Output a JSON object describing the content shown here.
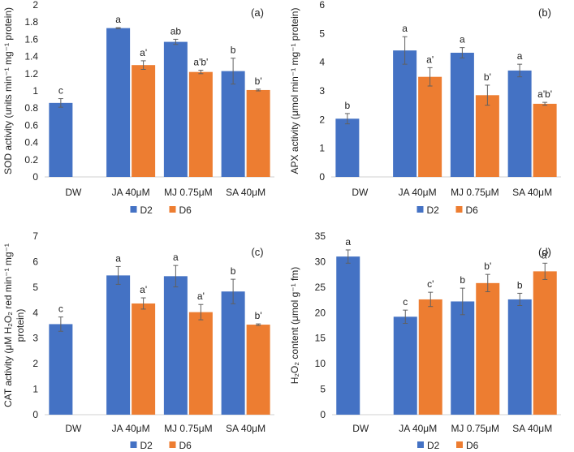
{
  "colors": {
    "D2": "#4472C4",
    "D6": "#ED7D31",
    "axis": "#404040",
    "error": "#606060"
  },
  "chart_data": [
    {
      "type": "bar",
      "panel_label": "(a)",
      "categories": [
        "DW",
        "JA 40μM",
        "MJ 0.75μM",
        "SA 40μM"
      ],
      "ylabel": "SOD activity (units min⁻¹ mg⁻¹ protein)",
      "ylim": [
        0,
        2
      ],
      "yticks": [
        "0",
        "0.2",
        "0.4",
        "0.6",
        "0.8",
        "1",
        "1.2",
        "1.4",
        "1.6",
        "1.8",
        "2"
      ],
      "series": [
        {
          "name": "D2",
          "values": [
            0.86,
            1.73,
            1.57,
            1.23
          ],
          "errors": [
            0.05,
            0.005,
            0.03,
            0.15
          ],
          "letters": [
            "c",
            "a",
            "ab",
            "b"
          ]
        },
        {
          "name": "D6",
          "values": [
            null,
            1.3,
            1.22,
            1.01
          ],
          "errors": [
            null,
            0.05,
            0.02,
            0.01
          ],
          "letters": [
            null,
            "a'",
            "a'b'",
            "b'"
          ]
        }
      ],
      "legend": [
        "D2",
        "D6"
      ]
    },
    {
      "type": "bar",
      "panel_label": "(b)",
      "categories": [
        "DW",
        "JA 40μM",
        "MJ 0.75μM",
        "SA 40μM"
      ],
      "ylabel": "APX activity (μmol min⁻¹ mg⁻¹ protein)",
      "ylim": [
        0,
        6
      ],
      "yticks": [
        "0",
        "1",
        "2",
        "3",
        "4",
        "5",
        "6"
      ],
      "series": [
        {
          "name": "D2",
          "values": [
            2.03,
            4.41,
            4.33,
            3.71
          ],
          "errors": [
            0.18,
            0.48,
            0.18,
            0.22
          ],
          "letters": [
            "b",
            "a",
            "a",
            "a"
          ]
        },
        {
          "name": "D6",
          "values": [
            null,
            3.49,
            2.85,
            2.55
          ],
          "errors": [
            null,
            0.32,
            0.35,
            0.05
          ],
          "letters": [
            null,
            "a'",
            "b'",
            "a'b'"
          ]
        }
      ],
      "legend": [
        "D2",
        "D6"
      ]
    },
    {
      "type": "bar",
      "panel_label": "(c)",
      "categories": [
        "DW",
        "JA 40μM",
        "MJ 0.75μM",
        "SA 40μM"
      ],
      "ylabel_lines": [
        "CAT activity (μM H₂O₂ red min⁻¹ mg⁻¹",
        "protein)"
      ],
      "ylim": [
        0,
        7
      ],
      "yticks": [
        "0",
        "1",
        "2",
        "3",
        "4",
        "5",
        "6",
        "7"
      ],
      "series": [
        {
          "name": "D2",
          "values": [
            3.55,
            5.46,
            5.43,
            4.83
          ],
          "errors": [
            0.28,
            0.35,
            0.42,
            0.48
          ],
          "letters": [
            "c",
            "a",
            "a",
            "b"
          ]
        },
        {
          "name": "D6",
          "values": [
            null,
            4.36,
            4.02,
            3.53
          ],
          "errors": [
            null,
            0.22,
            0.3,
            0.03
          ],
          "letters": [
            null,
            "a'",
            "a'",
            "b'"
          ]
        }
      ],
      "legend": [
        "D2",
        "D6"
      ]
    },
    {
      "type": "bar",
      "panel_label": "(d)",
      "categories": [
        "DW",
        "JA 40μM",
        "MJ 0.75μM",
        "SA 40μM"
      ],
      "ylabel": "H₂O₂ content (μmol g⁻¹ fm)",
      "ylim": [
        0,
        35
      ],
      "yticks": [
        "0",
        "5",
        "10",
        "15",
        "20",
        "25",
        "30",
        "35"
      ],
      "series": [
        {
          "name": "D2",
          "values": [
            31.0,
            19.2,
            22.2,
            22.6
          ],
          "errors": [
            1.3,
            1.3,
            2.6,
            1.2
          ],
          "letters": [
            "a",
            "c",
            "b",
            "b"
          ]
        },
        {
          "name": "D6",
          "values": [
            null,
            22.6,
            25.8,
            28.1
          ],
          "errors": [
            null,
            1.4,
            1.7,
            1.6
          ],
          "letters": [
            null,
            "c'",
            "b'",
            "a'"
          ]
        }
      ],
      "legend": [
        "D2",
        "D6"
      ]
    }
  ]
}
